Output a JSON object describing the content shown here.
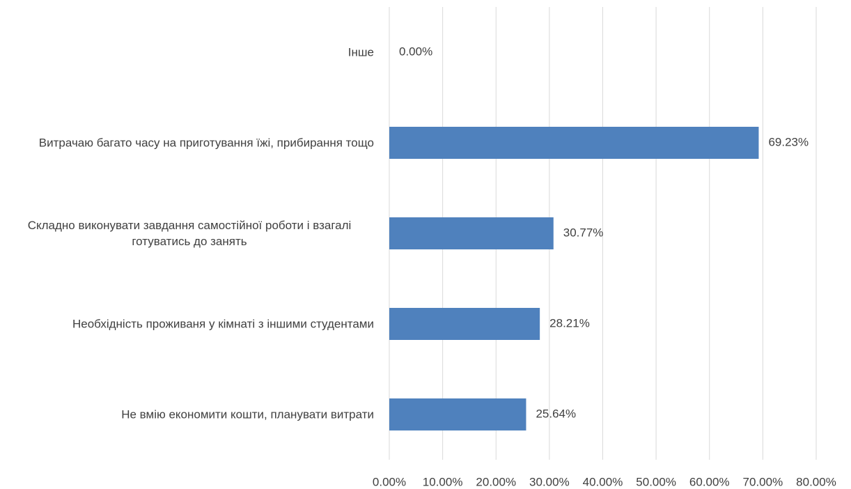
{
  "chart_data": {
    "type": "bar",
    "orientation": "horizontal",
    "categories": [
      "Інше",
      "Витрачаю багато часу на приготування їжі, прибирання тощо",
      "Складно виконувати завдання самостійної роботи і взагалі готуватись до занять",
      "Необхідність проживаня у кімнаті з іншими студентами",
      "Не вмію економити кошти, планувати витрати"
    ],
    "values": [
      0,
      69.23,
      30.77,
      28.21,
      25.64
    ],
    "value_labels": [
      "0.00%",
      "69.23%",
      "30.77%",
      "28.21%",
      "25.64%"
    ],
    "color": "#4f81bd",
    "xlim": [
      0,
      80
    ],
    "xticks": [
      {
        "value": 0,
        "label": "0.00%"
      },
      {
        "value": 10,
        "label": "10.00%"
      },
      {
        "value": 20,
        "label": "20.00%"
      },
      {
        "value": 30,
        "label": "30.00%"
      },
      {
        "value": 40,
        "label": "40.00%"
      },
      {
        "value": 50,
        "label": "50.00%"
      },
      {
        "value": 60,
        "label": "60.00%"
      },
      {
        "value": 70,
        "label": "70.00%"
      },
      {
        "value": 80,
        "label": "80.00%"
      }
    ],
    "grid": true
  }
}
